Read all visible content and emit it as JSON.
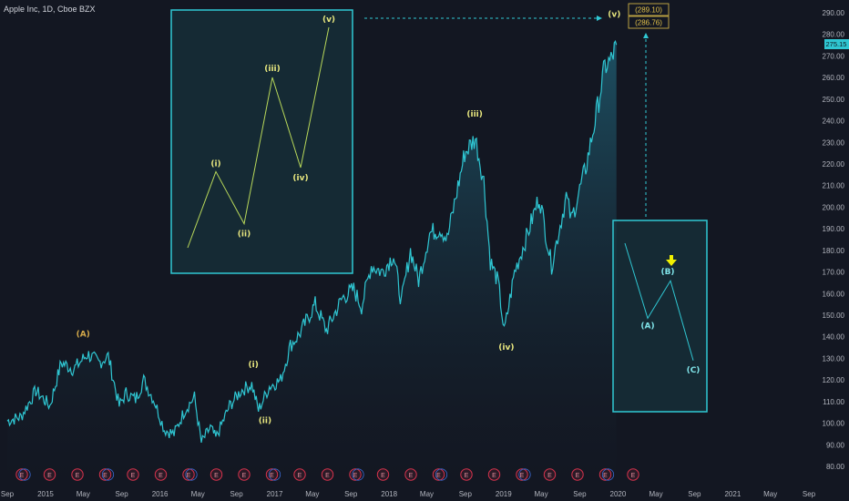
{
  "header": {
    "title": "Apple Inc, 1D, Cboe BZX"
  },
  "colors": {
    "background": "#131722",
    "price_line": "#2fc6d2",
    "area_top": "#1f5a6e",
    "box_border": "#30c9d4",
    "wave_label": "#e9e87f",
    "wave_label_alt": "#d4a94a",
    "target_box": "#e3c24a",
    "arrow": "#f1f100",
    "earnings_border": "#d6334d"
  },
  "chart_data": {
    "type": "line",
    "title": "",
    "xlabel": "",
    "ylabel": "",
    "x_ticks": [
      "Sep",
      "2015",
      "May",
      "Sep",
      "2016",
      "May",
      "Sep",
      "2017",
      "May",
      "Sep",
      "2018",
      "May",
      "Sep",
      "2019",
      "May",
      "Sep",
      "2020",
      "May",
      "Sep",
      "2021",
      "May",
      "Sep"
    ],
    "x_tick_dates": [
      "2014-09",
      "2015-01",
      "2015-05",
      "2015-09",
      "2016-01",
      "2016-05",
      "2016-09",
      "2017-01",
      "2017-05",
      "2017-09",
      "2018-01",
      "2018-05",
      "2018-09",
      "2019-01",
      "2019-05",
      "2019-09",
      "2020-01",
      "2020-05",
      "2020-09",
      "2021-01",
      "2021-05",
      "2021-09"
    ],
    "y_ticks": [
      "290.00",
      "280.00",
      "270.00",
      "260.00",
      "250.00",
      "240.00",
      "230.00",
      "220.00",
      "210.00",
      "200.00",
      "190.00",
      "180.00",
      "170.00",
      "160.00",
      "150.00",
      "140.00",
      "130.00",
      "120.00",
      "110.00",
      "100.00",
      "90.00",
      "80.00"
    ],
    "ylim": [
      76,
      294
    ],
    "last_price": "275.15",
    "target_labels": [
      "(289.10)",
      "(286.76)"
    ],
    "series": [
      {
        "points": [
          [
            "2014-09-01",
            101
          ],
          [
            "2014-10-15",
            103
          ],
          [
            "2014-12-01",
            115
          ],
          [
            "2015-01-15",
            108
          ],
          [
            "2015-02-20",
            128
          ],
          [
            "2015-04-01",
            125
          ],
          [
            "2015-05-15",
            132
          ],
          [
            "2015-06-20",
            128
          ],
          [
            "2015-07-20",
            131
          ],
          [
            "2015-08-24",
            108
          ],
          [
            "2015-09-15",
            114
          ],
          [
            "2015-10-15",
            111
          ],
          [
            "2015-11-10",
            120
          ],
          [
            "2015-12-15",
            110
          ],
          [
            "2016-01-15",
            97
          ],
          [
            "2016-02-15",
            95
          ],
          [
            "2016-03-20",
            106
          ],
          [
            "2016-04-20",
            112
          ],
          [
            "2016-05-12",
            91
          ],
          [
            "2016-06-10",
            98
          ],
          [
            "2016-06-27",
            93
          ],
          [
            "2016-08-10",
            108
          ],
          [
            "2016-09-15",
            115
          ],
          [
            "2016-10-20",
            118
          ],
          [
            "2016-11-10",
            106
          ],
          [
            "2016-12-15",
            117
          ],
          [
            "2017-01-20",
            120
          ],
          [
            "2017-02-20",
            136
          ],
          [
            "2017-03-20",
            141
          ],
          [
            "2017-05-10",
            155
          ],
          [
            "2017-06-15",
            143
          ],
          [
            "2017-08-05",
            158
          ],
          [
            "2017-09-10",
            162
          ],
          [
            "2017-10-05",
            154
          ],
          [
            "2017-11-05",
            173
          ],
          [
            "2017-12-10",
            170
          ],
          [
            "2018-01-15",
            178
          ],
          [
            "2018-02-09",
            156
          ],
          [
            "2018-03-10",
            180
          ],
          [
            "2018-04-05",
            166
          ],
          [
            "2018-05-10",
            188
          ],
          [
            "2018-06-15",
            190
          ],
          [
            "2018-07-05",
            185
          ],
          [
            "2018-08-05",
            207
          ],
          [
            "2018-08-30",
            225
          ],
          [
            "2018-10-03",
            232
          ],
          [
            "2018-10-30",
            212
          ],
          [
            "2018-11-20",
            175
          ],
          [
            "2018-12-15",
            165
          ],
          [
            "2019-01-03",
            142
          ],
          [
            "2019-02-05",
            170
          ],
          [
            "2019-03-15",
            186
          ],
          [
            "2019-04-25",
            205
          ],
          [
            "2019-06-03",
            173
          ],
          [
            "2019-07-20",
            205
          ],
          [
            "2019-08-05",
            194
          ],
          [
            "2019-09-20",
            218
          ],
          [
            "2019-10-20",
            240
          ],
          [
            "2019-11-20",
            265
          ],
          [
            "2019-12-10",
            268
          ],
          [
            "2019-12-27",
            275.15
          ]
        ]
      }
    ],
    "wave_labels": [
      {
        "text": "(A)",
        "date": "2015-05-01",
        "value": 140
      },
      {
        "text": "(i)",
        "date": "2016-10-25",
        "value": 126
      },
      {
        "text": "(ii)",
        "date": "2016-12-01",
        "value": 100
      },
      {
        "text": "(iii)",
        "date": "2018-10-01",
        "value": 242
      },
      {
        "text": "(iv)",
        "date": "2019-01-10",
        "value": 134
      },
      {
        "text": "(v)",
        "date": "2019-12-20",
        "value": 288
      }
    ]
  },
  "inset_impulse": {
    "labels": [
      "(i)",
      "(ii)",
      "(iii)",
      "(iv)",
      "(v)"
    ],
    "points": [
      [
        0,
        0
      ],
      [
        1,
        38
      ],
      [
        2,
        12
      ],
      [
        3,
        85
      ],
      [
        4,
        40
      ],
      [
        5,
        110
      ]
    ]
  },
  "inset_correction": {
    "labels": [
      "(A)",
      "(B)",
      "(C)"
    ],
    "points": [
      [
        0,
        100
      ],
      [
        1,
        20
      ],
      [
        2,
        60
      ],
      [
        3,
        -25
      ]
    ]
  },
  "earnings_badge": "E"
}
